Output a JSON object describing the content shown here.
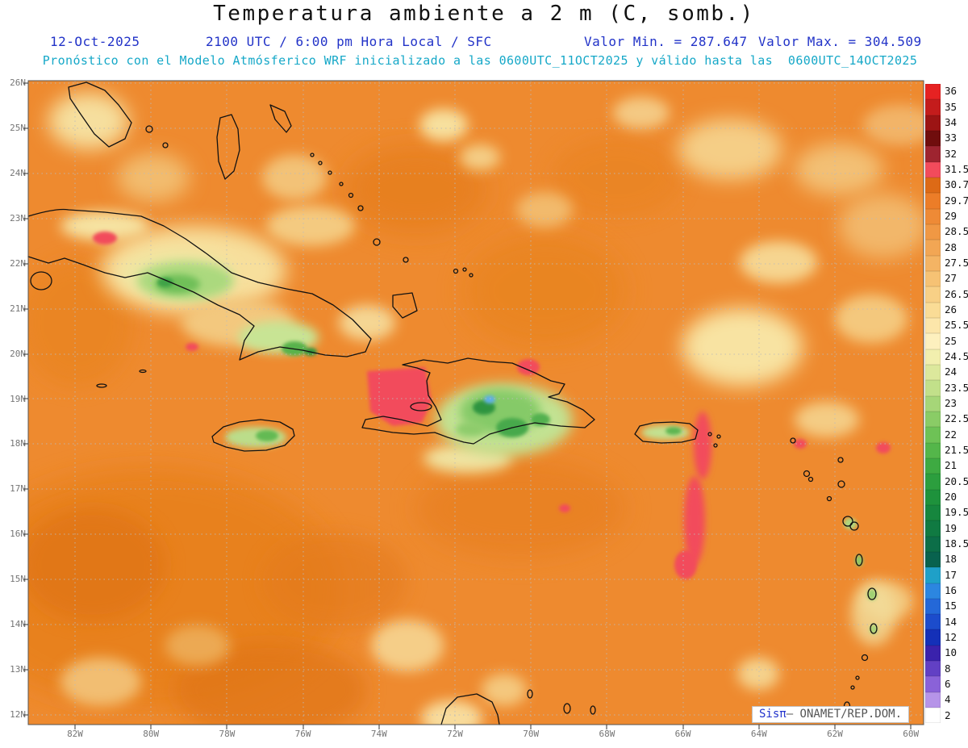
{
  "header": {
    "title": "Temperatura ambiente a 2 m (C, somb.)",
    "date": "12-Oct-2025",
    "time_info": "2100 UTC / 6:00 pm Hora Local / SFC",
    "valor_min": "Valor Min. = 287.647",
    "valor_max": "Valor Max. = 304.509",
    "forecast_line": "Pronóstico con el Modelo Atmósferico WRF inicializado a las 0600UTC_11OCT2025 y válido hasta las  0600UTC_14OCT2025"
  },
  "map": {
    "region": "Caribbean (Cuba, Hispaniola, Jamaica, Puerto Rico, Lesser Antilles)",
    "lat_ticks": [
      "26N",
      "25N",
      "24N",
      "23N",
      "22N",
      "21N",
      "20N",
      "19N",
      "18N",
      "17N",
      "16N",
      "15N",
      "14N",
      "13N",
      "12N"
    ],
    "lon_ticks": [
      "82W",
      "80W",
      "78W",
      "76W",
      "74W",
      "72W",
      "70W",
      "68W",
      "66W",
      "64W",
      "62W",
      "60W"
    ],
    "watermark": {
      "brand": "Sisπ",
      "text": "– ONAMET/REP.DOM."
    }
  },
  "colorbar": {
    "units": "C",
    "levels": [
      {
        "value": "36",
        "color": "#E62222"
      },
      {
        "value": "35",
        "color": "#C41C1C"
      },
      {
        "value": "34",
        "color": "#9C1414"
      },
      {
        "value": "33",
        "color": "#700D0D"
      },
      {
        "value": "32",
        "color": "#9E2430"
      },
      {
        "value": "31.5",
        "color": "#F24B5C"
      },
      {
        "value": "30.7",
        "color": "#DD6A16"
      },
      {
        "value": "29.7",
        "color": "#EC7D28"
      },
      {
        "value": "29",
        "color": "#EE8A36"
      },
      {
        "value": "28.5",
        "color": "#F09844"
      },
      {
        "value": "28",
        "color": "#F2A654"
      },
      {
        "value": "27.5",
        "color": "#F4B464"
      },
      {
        "value": "27",
        "color": "#F6C274"
      },
      {
        "value": "26.5",
        "color": "#F8D086"
      },
      {
        "value": "26",
        "color": "#FADC96"
      },
      {
        "value": "25.5",
        "color": "#FCE6AA"
      },
      {
        "value": "25",
        "color": "#FDF0BE"
      },
      {
        "value": "24.5",
        "color": "#F2EFAE"
      },
      {
        "value": "24",
        "color": "#DCE89C"
      },
      {
        "value": "23.5",
        "color": "#C2E08A"
      },
      {
        "value": "23",
        "color": "#A6D678"
      },
      {
        "value": "22.5",
        "color": "#8ACC66"
      },
      {
        "value": "22",
        "color": "#6EC256"
      },
      {
        "value": "21.5",
        "color": "#54B64A"
      },
      {
        "value": "21",
        "color": "#3EAA42"
      },
      {
        "value": "20.5",
        "color": "#2C9E3E"
      },
      {
        "value": "20",
        "color": "#1E923C"
      },
      {
        "value": "19.5",
        "color": "#16863E"
      },
      {
        "value": "19",
        "color": "#107A42"
      },
      {
        "value": "18.5",
        "color": "#0C6E48"
      },
      {
        "value": "18",
        "color": "#08624E"
      },
      {
        "value": "17",
        "color": "#1FA0C8"
      },
      {
        "value": "16",
        "color": "#2C86E0"
      },
      {
        "value": "15",
        "color": "#2468D8"
      },
      {
        "value": "14",
        "color": "#1C4CCC"
      },
      {
        "value": "12",
        "color": "#1430B8"
      },
      {
        "value": "10",
        "color": "#3A22AC"
      },
      {
        "value": "8",
        "color": "#6240C4"
      },
      {
        "value": "6",
        "color": "#8A62D8"
      },
      {
        "value": "4",
        "color": "#B694E8"
      },
      {
        "value": "2",
        "color": "#FFFFFF"
      }
    ]
  },
  "colors": {
    "sea_base": "#EE8A2F",
    "hot_spot_red": "#F24B5C",
    "warm_patch_yellow": "#F7DF9C",
    "vegetation_green": "#85CA67",
    "cool_spot_blue": "#5FAEE8",
    "header_blue": "#2233C8",
    "header_cyan": "#16A8C8",
    "grid_gray": "#BBBBBB",
    "coastline": "#111111"
  }
}
